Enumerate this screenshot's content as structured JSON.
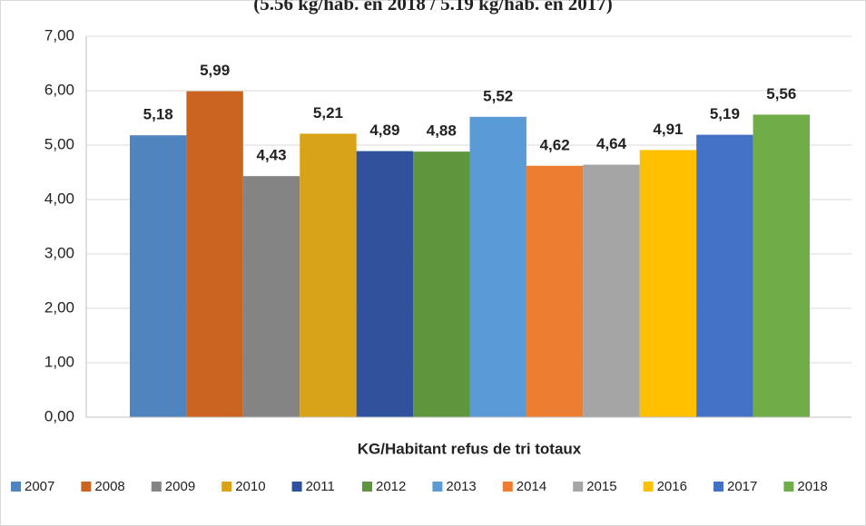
{
  "chart_data": {
    "type": "bar",
    "title": "(5.56 kg/hab. en 2018 / 5.19 kg/hab. en 2017)",
    "categories": [
      "KG/Habitant refus de tri totaux"
    ],
    "series": [
      {
        "name": "2007",
        "color": "#4f84bf",
        "values": [
          5.18
        ],
        "value_labels": [
          "5,18"
        ]
      },
      {
        "name": "2008",
        "color": "#cb6421",
        "values": [
          5.99
        ],
        "value_labels": [
          "5,99"
        ]
      },
      {
        "name": "2009",
        "color": "#848484",
        "values": [
          4.43
        ],
        "value_labels": [
          "4,43"
        ]
      },
      {
        "name": "2010",
        "color": "#d8a318",
        "values": [
          5.21
        ],
        "value_labels": [
          "5,21"
        ]
      },
      {
        "name": "2011",
        "color": "#30519c",
        "values": [
          4.89
        ],
        "value_labels": [
          "4,89"
        ]
      },
      {
        "name": "2012",
        "color": "#5f953c",
        "values": [
          4.88
        ],
        "value_labels": [
          "4,88"
        ]
      },
      {
        "name": "2013",
        "color": "#5b9bd5",
        "values": [
          5.52
        ],
        "value_labels": [
          "5,52"
        ]
      },
      {
        "name": "2014",
        "color": "#ed7d31",
        "values": [
          4.62
        ],
        "value_labels": [
          "4,62"
        ]
      },
      {
        "name": "2015",
        "color": "#a5a5a5",
        "values": [
          4.64
        ],
        "value_labels": [
          "4,64"
        ]
      },
      {
        "name": "2016",
        "color": "#ffc000",
        "values": [
          4.91
        ],
        "value_labels": [
          "4,91"
        ]
      },
      {
        "name": "2017",
        "color": "#4472c4",
        "values": [
          5.19
        ],
        "value_labels": [
          "5,19"
        ]
      },
      {
        "name": "2018",
        "color": "#70ad47",
        "values": [
          5.56
        ],
        "value_labels": [
          "5,56"
        ]
      }
    ],
    "ylim": [
      0,
      7
    ],
    "yticks": [
      {
        "value": 0,
        "label": "0,00"
      },
      {
        "value": 1,
        "label": "1,00"
      },
      {
        "value": 2,
        "label": "2,00"
      },
      {
        "value": 3,
        "label": "3,00"
      },
      {
        "value": 4,
        "label": "4,00"
      },
      {
        "value": 5,
        "label": "5,00"
      },
      {
        "value": 6,
        "label": "6,00"
      },
      {
        "value": 7,
        "label": "7,00"
      }
    ],
    "grid": true,
    "legend": "bottom"
  }
}
